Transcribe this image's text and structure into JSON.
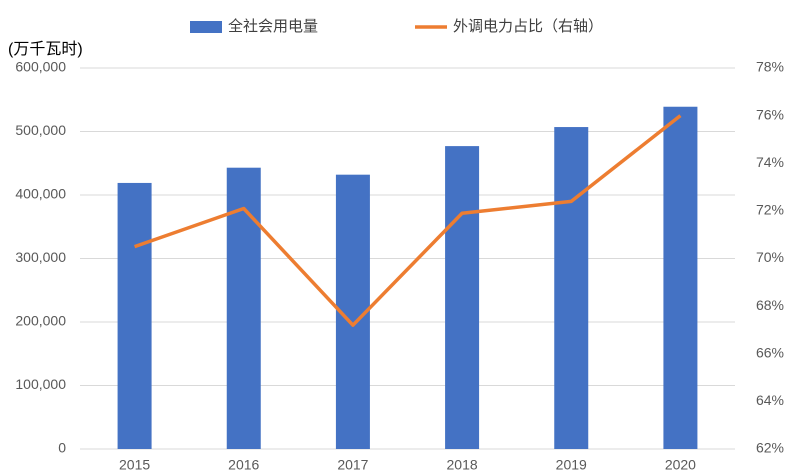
{
  "chart_data": {
    "type": "bar",
    "y_label": "(万千瓦时)",
    "categories": [
      "2015",
      "2016",
      "2017",
      "2018",
      "2019",
      "2020"
    ],
    "series": [
      {
        "name": "全社会用电量",
        "color": "#4472c4",
        "values": [
          419000,
          443000,
          432000,
          477000,
          507000,
          539000
        ]
      },
      {
        "name": "外调电力占比（右轴）",
        "color": "#ed7d31",
        "type": "line",
        "axis": "y2",
        "values": [
          70.5,
          72.1,
          67.2,
          71.9,
          72.4,
          76.0
        ]
      }
    ],
    "ylim": [
      0,
      600000
    ],
    "yticks": [
      0,
      {
        "value": 100000,
        "label": "100,000"
      },
      {
        "value": 200000,
        "label": "200,000"
      },
      {
        "value": 300000,
        "label": "300,000"
      },
      {
        "value": 400000,
        "label": "400,000"
      },
      {
        "value": 500000,
        "label": "500,000"
      },
      {
        "value": 600000,
        "label": "600,000"
      }
    ],
    "y2lim": [
      62,
      78
    ],
    "y2ticks": [
      {
        "value": 62,
        "label": "62%"
      },
      {
        "value": 64,
        "label": "64%"
      },
      {
        "value": 66,
        "label": "66%"
      },
      {
        "value": 68,
        "label": "68%"
      },
      {
        "value": 70,
        "label": "70%"
      },
      {
        "value": 72,
        "label": "72%"
      },
      {
        "value": 74,
        "label": "74%"
      },
      {
        "value": 76,
        "label": "76%"
      },
      {
        "value": 78,
        "label": "78%"
      }
    ],
    "grid": true
  }
}
